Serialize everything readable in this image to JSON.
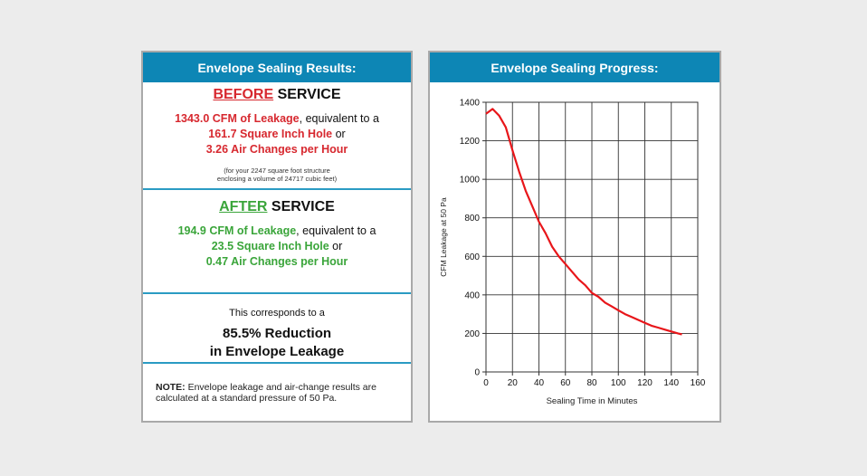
{
  "results": {
    "title": "Envelope Sealing Results:",
    "before": {
      "keyword": "BEFORE",
      "heading_rest": " SERVICE",
      "leakage": "1343.0 CFM of Leakage",
      "leakage_suffix": ", equivalent to a",
      "hole": "161.7 Square Inch Hole",
      "hole_suffix": " or",
      "ach": "3.26 Air Changes per Hour",
      "footnote_line1": "(for your 2247 square foot structure",
      "footnote_line2": "enclosing a volume of 24717 cubic feet)"
    },
    "after": {
      "keyword": "AFTER",
      "heading_rest": " SERVICE",
      "leakage": "194.9 CFM of Leakage",
      "leakage_suffix": ", equivalent to a",
      "hole": "23.5 Square Inch Hole",
      "hole_suffix": " or",
      "ach": "0.47 Air Changes per Hour"
    },
    "summary": {
      "intro": "This corresponds to a",
      "line1": "85.5% Reduction",
      "line2": "in Envelope Leakage"
    },
    "note": {
      "label": "NOTE:",
      "text": " Envelope leakage and air-change results are calculated at a standard pressure of 50 Pa."
    },
    "colors": {
      "header": "#0d86b5",
      "before": "#d7282f",
      "after": "#3aa53a"
    }
  },
  "progress": {
    "title": "Envelope Sealing Progress:"
  },
  "chart_data": {
    "type": "line",
    "xlabel": "Sealing Time in Minutes",
    "ylabel": "CFM Leakage at 50 Pa",
    "xlim": [
      0,
      160
    ],
    "ylim": [
      0,
      1400
    ],
    "xticks": [
      0,
      20,
      40,
      60,
      80,
      100,
      120,
      140,
      160
    ],
    "yticks": [
      0,
      200,
      400,
      600,
      800,
      1000,
      1200,
      1400
    ],
    "grid": true,
    "series": [
      {
        "color": "#e8161a",
        "x": [
          0,
          5,
          10,
          15,
          20,
          25,
          30,
          35,
          40,
          45,
          50,
          55,
          60,
          65,
          70,
          75,
          80,
          85,
          90,
          95,
          100,
          105,
          110,
          115,
          120,
          125,
          130,
          135,
          140,
          145,
          148
        ],
        "y": [
          1340,
          1365,
          1330,
          1270,
          1150,
          1040,
          940,
          860,
          780,
          720,
          650,
          600,
          560,
          520,
          480,
          450,
          410,
          390,
          360,
          340,
          320,
          300,
          285,
          270,
          255,
          240,
          230,
          220,
          210,
          200,
          195
        ]
      }
    ]
  }
}
